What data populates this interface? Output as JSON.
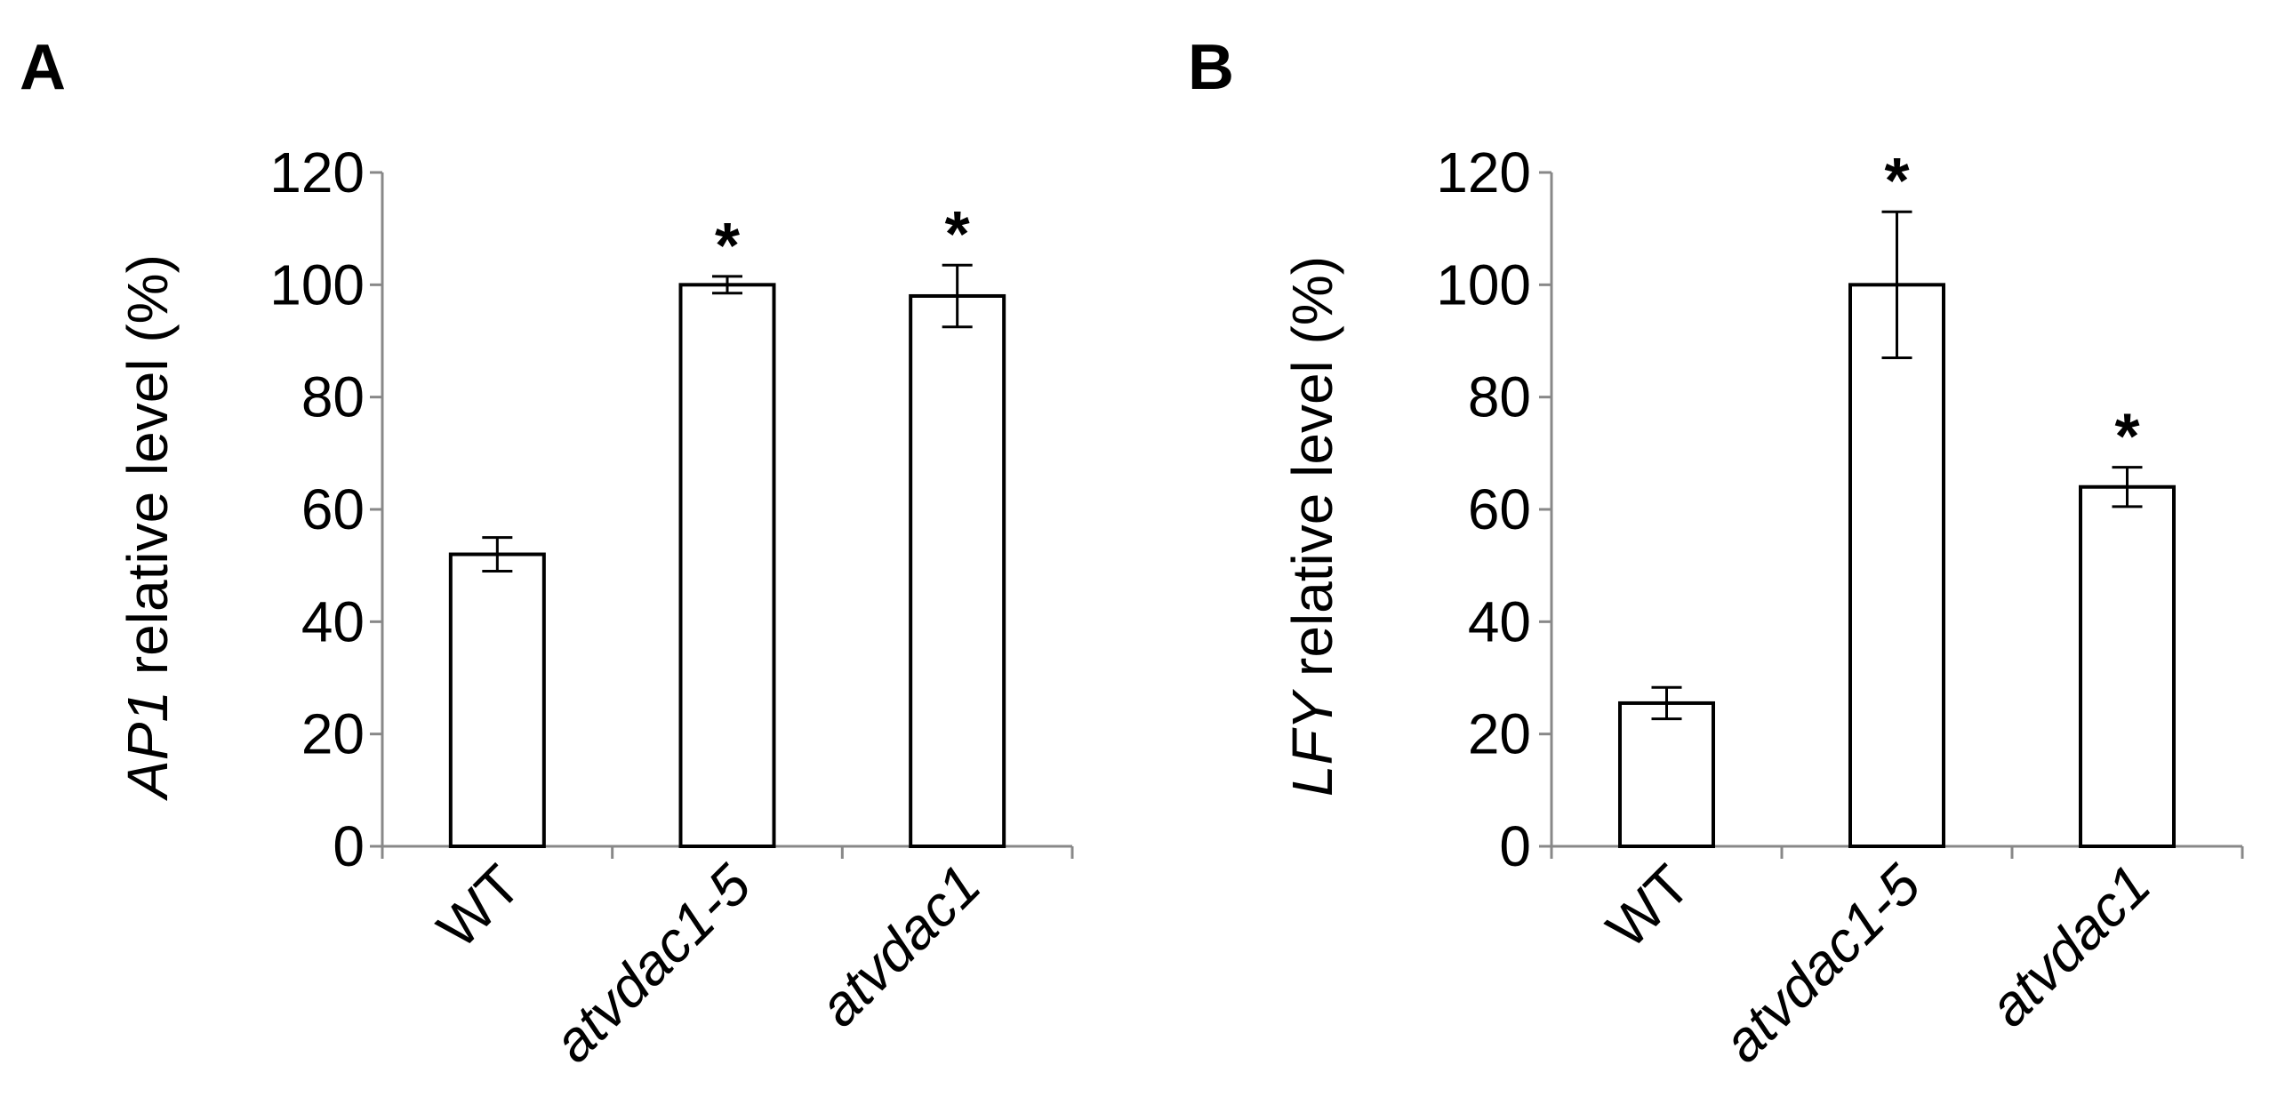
{
  "panels": [
    {
      "label": "A",
      "ylabel_gene": "AP1",
      "ylabel_rest": " relative level (%)"
    },
    {
      "label": "B",
      "ylabel_gene": "LFY",
      "ylabel_rest": " relative level (%)"
    }
  ],
  "chart_data": [
    {
      "type": "bar",
      "title": "",
      "categories": [
        "WT",
        "atvdac1-5",
        "atvdac1"
      ],
      "category_italic": [
        false,
        true,
        true
      ],
      "values": [
        52,
        100,
        98
      ],
      "errors": [
        3,
        1.5,
        5.5
      ],
      "significance": [
        "",
        "*",
        "*"
      ],
      "xlabel": "",
      "ylabel": "AP1 relative level (%)",
      "ylim": [
        0,
        120
      ],
      "yticks": [
        0,
        20,
        40,
        60,
        80,
        100,
        120
      ],
      "grid": false,
      "bar_fill": "#ffffff",
      "bar_stroke": "#000000"
    },
    {
      "type": "bar",
      "title": "",
      "categories": [
        "WT",
        "atvdac1-5",
        "atvdac1"
      ],
      "category_italic": [
        false,
        true,
        true
      ],
      "values": [
        25.5,
        100,
        64
      ],
      "errors": [
        2.8,
        13,
        3.5
      ],
      "significance": [
        "",
        "*",
        "*"
      ],
      "xlabel": "",
      "ylabel": "LFY relative level (%)",
      "ylim": [
        0,
        120
      ],
      "yticks": [
        0,
        20,
        40,
        60,
        80,
        100,
        120
      ],
      "grid": false,
      "bar_fill": "#ffffff",
      "bar_stroke": "#000000"
    }
  ]
}
